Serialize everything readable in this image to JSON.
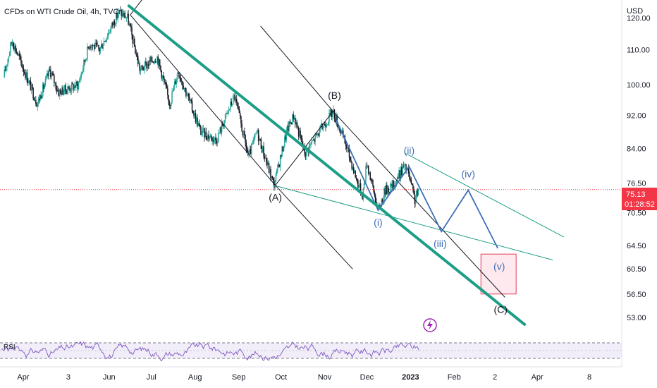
{
  "header": {
    "title": "CFDs on WTI Crude Oil, 4h, TVC",
    "currency": "USD"
  },
  "price_tag": {
    "price": "75.13",
    "countdown": "01:28:52",
    "color": "#f23645"
  },
  "rsi": {
    "label": "RSI"
  },
  "colors": {
    "candle_up": "#26a69a",
    "candle_down": "#131722",
    "main_channel": "#1c9e86",
    "blue_wave": "#3f6fb5",
    "target_box_fill": "#fde2e8",
    "target_box_border": "#e0405a",
    "rsi_line": "#7e57c2",
    "rsi_band": "#ede7f6"
  },
  "icons": {
    "alert": "lightning-icon"
  },
  "chart_data": {
    "type": "candlestick",
    "title": "CFDs on WTI Crude Oil, 4h, TVC",
    "y_unit": "USD",
    "y_scale": "log",
    "ylim": [
      51,
      126
    ],
    "y_ticks": [
      {
        "label": "120.00",
        "value": 120
      },
      {
        "label": "110.00",
        "value": 110
      },
      {
        "label": "100.00",
        "value": 100
      },
      {
        "label": "92.00",
        "value": 92
      },
      {
        "label": "84.00",
        "value": 84
      },
      {
        "label": "76.50",
        "value": 76.5
      },
      {
        "label": "70.50",
        "value": 70.5
      },
      {
        "label": "64.50",
        "value": 64.5
      },
      {
        "label": "60.50",
        "value": 60.5
      },
      {
        "label": "56.50",
        "value": 56.5
      },
      {
        "label": "53.00",
        "value": 53
      }
    ],
    "x_ticks": [
      {
        "label": "Apr",
        "date": "2022-04-01"
      },
      {
        "label": "3",
        "date": "2022-05-03"
      },
      {
        "label": "Jun",
        "date": "2022-06-01"
      },
      {
        "label": "Jul",
        "date": "2022-07-01"
      },
      {
        "label": "Aug",
        "date": "2022-08-01"
      },
      {
        "label": "Sep",
        "date": "2022-09-01"
      },
      {
        "label": "Oct",
        "date": "2022-10-01"
      },
      {
        "label": "Nov",
        "date": "2022-11-01"
      },
      {
        "label": "Dec",
        "date": "2022-12-01"
      },
      {
        "label": "2023",
        "date": "2023-01-01"
      },
      {
        "label": "Feb",
        "date": "2023-02-01"
      },
      {
        "label": "2",
        "date": "2023-03-02"
      },
      {
        "label": "Apr",
        "date": "2023-04-01"
      },
      {
        "label": "8",
        "date": "2023-05-08"
      }
    ],
    "last_price": 75.13,
    "price_path": [
      {
        "date": "2022-03-18",
        "close": 102
      },
      {
        "date": "2022-03-24",
        "close": 113
      },
      {
        "date": "2022-04-11",
        "close": 95
      },
      {
        "date": "2022-04-20",
        "close": 104
      },
      {
        "date": "2022-04-26",
        "close": 98
      },
      {
        "date": "2022-05-10",
        "close": 100
      },
      {
        "date": "2022-05-18",
        "close": 112
      },
      {
        "date": "2022-05-25",
        "close": 110
      },
      {
        "date": "2022-06-08",
        "close": 122
      },
      {
        "date": "2022-06-14",
        "close": 120
      },
      {
        "date": "2022-06-23",
        "close": 104
      },
      {
        "date": "2022-07-05",
        "close": 108
      },
      {
        "date": "2022-07-14",
        "close": 95
      },
      {
        "date": "2022-07-20",
        "close": 104
      },
      {
        "date": "2022-08-05",
        "close": 88
      },
      {
        "date": "2022-08-16",
        "close": 86
      },
      {
        "date": "2022-08-29",
        "close": 97
      },
      {
        "date": "2022-09-08",
        "close": 82
      },
      {
        "date": "2022-09-14",
        "close": 88
      },
      {
        "date": "2022-09-26",
        "close": 76
      },
      {
        "date": "2022-10-05",
        "close": 88
      },
      {
        "date": "2022-10-10",
        "close": 92
      },
      {
        "date": "2022-10-18",
        "close": 83
      },
      {
        "date": "2022-11-07",
        "close": 93
      },
      {
        "date": "2022-11-16",
        "close": 85
      },
      {
        "date": "2022-11-24",
        "close": 77
      },
      {
        "date": "2022-11-28",
        "close": 74
      },
      {
        "date": "2022-12-01",
        "close": 81
      },
      {
        "date": "2022-12-09",
        "close": 71
      },
      {
        "date": "2022-12-14",
        "close": 75
      },
      {
        "date": "2022-12-20",
        "close": 76
      },
      {
        "date": "2022-12-27",
        "close": 80
      },
      {
        "date": "2022-12-30",
        "close": 79
      },
      {
        "date": "2023-01-04",
        "close": 73
      },
      {
        "date": "2023-01-07",
        "close": 75.13
      }
    ],
    "drawings": {
      "channel_line": {
        "start": {
          "date": "2022-06-15",
          "price": 124
        },
        "end": {
          "date": "2023-03-23",
          "price": 52
        }
      },
      "black_zigzag": [
        {
          "date": "2022-06-16",
          "price": 121
        },
        {
          "date": "2022-09-27",
          "price": 76
        },
        {
          "date": "2022-11-07",
          "price": 93
        },
        {
          "date": "2023-03-09",
          "price": 56
        }
      ],
      "black_channel_top": [
        {
          "date": "2022-11-07",
          "price": 93
        },
        {
          "date": "2023-03-09",
          "price": 56
        }
      ],
      "blue_wave": [
        {
          "date": "2022-11-09",
          "price": 91
        },
        {
          "date": "2022-12-09",
          "price": 71
        },
        {
          "date": "2022-12-31",
          "price": 80
        },
        {
          "date": "2023-01-23",
          "price": 67
        },
        {
          "date": "2023-02-11",
          "price": 75
        },
        {
          "date": "2023-03-04",
          "price": 64
        }
      ],
      "upper_trendline": {
        "start": {
          "date": "2022-12-28",
          "price": 83
        },
        "end": {
          "date": "2023-04-20",
          "price": 66
        }
      },
      "lower_trendline": {
        "start": {
          "date": "2022-09-26",
          "price": 76
        },
        "end": {
          "date": "2023-04-12",
          "price": 62
        }
      },
      "target_box": {
        "date_from": "2023-02-20",
        "date_to": "2023-03-17",
        "price_from": 56.5,
        "price_to": 63
      }
    },
    "annotations": [
      {
        "text": "(A)",
        "date": "2022-09-27",
        "price": 76,
        "style": "black",
        "position": "below"
      },
      {
        "text": "(B)",
        "date": "2022-11-08",
        "price": 93,
        "style": "black",
        "position": "above"
      },
      {
        "text": "(C)",
        "date": "2023-03-06",
        "price": 56,
        "style": "black",
        "position": "below"
      },
      {
        "text": "(i)",
        "date": "2022-12-09",
        "price": 71,
        "style": "blue",
        "position": "below"
      },
      {
        "text": "(ii)",
        "date": "2022-12-31",
        "price": 80,
        "style": "blue",
        "position": "above"
      },
      {
        "text": "(iii)",
        "date": "2023-01-22",
        "price": 67,
        "style": "blue",
        "position": "below"
      },
      {
        "text": "(iv)",
        "date": "2023-02-11",
        "price": 75,
        "style": "blue",
        "position": "above"
      },
      {
        "text": "(v)",
        "date": "2023-03-05",
        "price": 62,
        "style": "blue",
        "position": "inside"
      }
    ]
  }
}
